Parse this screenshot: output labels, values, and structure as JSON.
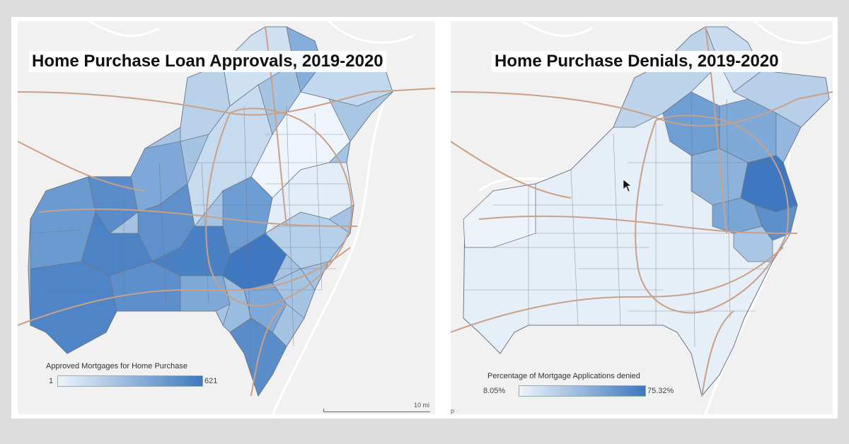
{
  "maps": {
    "left": {
      "title": "Home Purchase Loan Approvals, 2019-2020",
      "legend": {
        "title": "Approved Mortgages for Home Purchase",
        "min": "1",
        "max": "621",
        "color_low": "#eef4fb",
        "color_high": "#3d78bf"
      },
      "scale_label": "10 mi"
    },
    "right": {
      "title": "Home Purchase Denials, 2019-2020",
      "legend": {
        "title": "Percentage of Mortgage Applications denied",
        "min": "8.05%",
        "max": "75.32%",
        "color_low": "#eef4fb",
        "color_high": "#3d78bf"
      },
      "corner_mark": "p"
    }
  },
  "colors": {
    "road": "#c9a088",
    "boundary": "#6b7585",
    "river": "#ffffff"
  }
}
